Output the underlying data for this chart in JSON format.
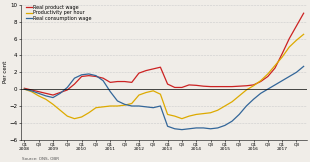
{
  "title": "",
  "xlabel": "",
  "ylabel": "Per cent",
  "source": "Source: ONS, OBR",
  "ylim": [
    -6,
    10
  ],
  "yticks": [
    -6,
    -4,
    -2,
    0,
    2,
    4,
    6,
    8,
    10
  ],
  "legend": [
    "Real product wage",
    "Productivity per hour",
    "Real consumption wage"
  ],
  "colors": [
    "#cc2222",
    "#ddaa00",
    "#336699"
  ],
  "bg_color": "#f0ede8",
  "real_product_wage": [
    0.1,
    -0.1,
    -0.3,
    -0.5,
    -0.7,
    -0.4,
    -0.1,
    0.6,
    1.5,
    1.6,
    1.5,
    1.3,
    0.8,
    0.9,
    0.9,
    0.8,
    1.9,
    2.2,
    2.4,
    2.6,
    0.6,
    0.2,
    0.2,
    0.5,
    0.45,
    0.35,
    0.3,
    0.3,
    0.3,
    0.3,
    0.35,
    0.4,
    0.5,
    0.9,
    1.5,
    2.5,
    4.2,
    6.0,
    7.5,
    9.0
  ],
  "productivity_per_hour": [
    0.0,
    -0.3,
    -0.8,
    -1.2,
    -1.8,
    -2.5,
    -3.2,
    -3.5,
    -3.3,
    -2.8,
    -2.2,
    -2.1,
    -2.0,
    -2.0,
    -1.9,
    -1.7,
    -0.7,
    -0.4,
    -0.2,
    -0.6,
    -3.0,
    -3.2,
    -3.5,
    -3.2,
    -3.0,
    -2.9,
    -2.8,
    -2.5,
    -2.0,
    -1.5,
    -0.8,
    -0.1,
    0.4,
    1.0,
    1.8,
    2.8,
    3.8,
    5.0,
    5.8,
    6.5
  ],
  "real_consumption_wage": [
    0.0,
    -0.2,
    -0.5,
    -0.8,
    -1.0,
    -0.5,
    0.2,
    1.3,
    1.7,
    1.8,
    1.6,
    1.0,
    -0.3,
    -1.4,
    -1.8,
    -2.0,
    -2.0,
    -2.1,
    -2.2,
    -2.0,
    -4.4,
    -4.7,
    -4.8,
    -4.7,
    -4.6,
    -4.6,
    -4.7,
    -4.6,
    -4.3,
    -3.8,
    -3.0,
    -2.0,
    -1.2,
    -0.5,
    0.0,
    0.5,
    1.0,
    1.5,
    2.0,
    2.7
  ]
}
